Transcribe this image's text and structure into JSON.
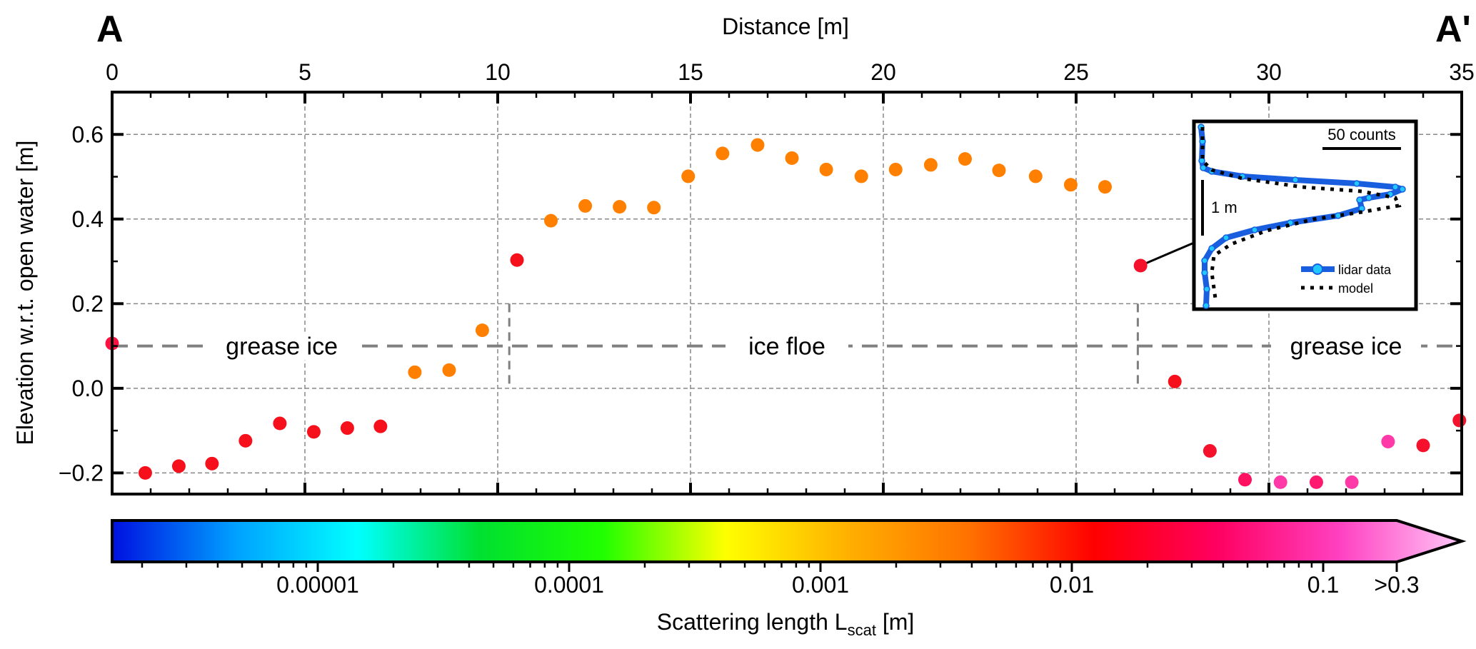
{
  "chart_data": {
    "type": "scatter",
    "title": "",
    "xlabel": "Distance [m]",
    "ylabel": "Elevation w.r.t. open water [m]",
    "xlim": [
      0,
      35
    ],
    "ylim": [
      -0.25,
      0.7
    ],
    "xticks": [
      0,
      5,
      10,
      15,
      20,
      25,
      30,
      35
    ],
    "yticks": [
      -0.2,
      0.0,
      0.2,
      0.4,
      0.6
    ],
    "ytick_labels": [
      "−0.2",
      "0.0",
      "0.2",
      "0.4",
      "0.6"
    ],
    "grid": true,
    "corner_labels": {
      "left": "A",
      "right": "A'"
    },
    "water_level": 0.1,
    "phase_boundaries": [
      10.3,
      26.6
    ],
    "phase_labels": [
      {
        "text": "grease ice",
        "x": 4.4
      },
      {
        "text": "ice floe",
        "x": 17.5
      },
      {
        "text": "grease ice",
        "x": 32.0
      }
    ],
    "points": [
      {
        "x": 0.0,
        "y": 0.106,
        "color": "#ff1040"
      },
      {
        "x": 0.86,
        "y": -0.2,
        "color": "#f5101c"
      },
      {
        "x": 1.73,
        "y": -0.184,
        "color": "#f5101c"
      },
      {
        "x": 2.59,
        "y": -0.178,
        "color": "#f5101c"
      },
      {
        "x": 3.46,
        "y": -0.124,
        "color": "#f5101c"
      },
      {
        "x": 4.35,
        "y": -0.083,
        "color": "#f5101c"
      },
      {
        "x": 5.23,
        "y": -0.103,
        "color": "#f5101c"
      },
      {
        "x": 6.1,
        "y": -0.094,
        "color": "#f5101c"
      },
      {
        "x": 6.96,
        "y": -0.09,
        "color": "#f5101c"
      },
      {
        "x": 7.85,
        "y": 0.038,
        "color": "#ff8000"
      },
      {
        "x": 8.74,
        "y": 0.043,
        "color": "#ff8000"
      },
      {
        "x": 9.6,
        "y": 0.137,
        "color": "#ff8000"
      },
      {
        "x": 10.5,
        "y": 0.303,
        "color": "#f5101c"
      },
      {
        "x": 11.38,
        "y": 0.396,
        "color": "#ff8000"
      },
      {
        "x": 12.27,
        "y": 0.431,
        "color": "#ff8000"
      },
      {
        "x": 13.16,
        "y": 0.429,
        "color": "#ff8000"
      },
      {
        "x": 14.05,
        "y": 0.427,
        "color": "#ff8000"
      },
      {
        "x": 14.94,
        "y": 0.501,
        "color": "#ff8000"
      },
      {
        "x": 15.83,
        "y": 0.555,
        "color": "#ff8000"
      },
      {
        "x": 16.74,
        "y": 0.575,
        "color": "#ff8000"
      },
      {
        "x": 17.63,
        "y": 0.544,
        "color": "#ff8000"
      },
      {
        "x": 18.52,
        "y": 0.517,
        "color": "#ff8000"
      },
      {
        "x": 19.43,
        "y": 0.501,
        "color": "#ff8000"
      },
      {
        "x": 20.32,
        "y": 0.517,
        "color": "#ff8000"
      },
      {
        "x": 21.23,
        "y": 0.528,
        "color": "#ff8000"
      },
      {
        "x": 22.12,
        "y": 0.542,
        "color": "#ff8000"
      },
      {
        "x": 23.0,
        "y": 0.515,
        "color": "#ff8000"
      },
      {
        "x": 23.95,
        "y": 0.501,
        "color": "#ff8000"
      },
      {
        "x": 24.86,
        "y": 0.481,
        "color": "#ff8000"
      },
      {
        "x": 25.75,
        "y": 0.476,
        "color": "#ff8000"
      },
      {
        "x": 26.67,
        "y": 0.29,
        "color": "#f5102c"
      },
      {
        "x": 27.56,
        "y": 0.016,
        "color": "#f5101c"
      },
      {
        "x": 28.47,
        "y": -0.148,
        "color": "#f5102c"
      },
      {
        "x": 29.38,
        "y": -0.216,
        "color": "#ff1060"
      },
      {
        "x": 30.3,
        "y": -0.222,
        "color": "#ff3aa8"
      },
      {
        "x": 31.23,
        "y": -0.222,
        "color": "#ff1a70"
      },
      {
        "x": 32.15,
        "y": -0.222,
        "color": "#ff3aa8"
      },
      {
        "x": 33.09,
        "y": -0.126,
        "color": "#ff3aa8"
      },
      {
        "x": 34.0,
        "y": -0.135,
        "color": "#f5102c"
      },
      {
        "x": 34.94,
        "y": -0.076,
        "color": "#f5102c"
      }
    ],
    "inset": {
      "highlighted_x": 26.67,
      "scale_bar_counts": "50 counts",
      "scale_bar_height": "1 m",
      "legend": [
        "lidar data",
        "model"
      ]
    },
    "colorbar": {
      "label_main": "Scattering length L",
      "label_sub": "scat",
      "label_unit": " [m]",
      "scale": "log",
      "ticks": [
        {
          "value": 1e-05,
          "label": "0.00001"
        },
        {
          "value": 0.0001,
          "label": "0.0001"
        },
        {
          "value": 0.001,
          "label": "0.001"
        },
        {
          "value": 0.01,
          "label": "0.01"
        },
        {
          "value": 0.1,
          "label": "0.1"
        },
        {
          "value": 0.3,
          "label": ">0.3"
        }
      ],
      "colors": [
        "#0010e0",
        "#00a0ff",
        "#00ffff",
        "#00e030",
        "#20ff00",
        "#ffff00",
        "#ffb000",
        "#ff7000",
        "#ff0000",
        "#ff0060",
        "#ff40c0",
        "#ffc8f8"
      ]
    }
  }
}
